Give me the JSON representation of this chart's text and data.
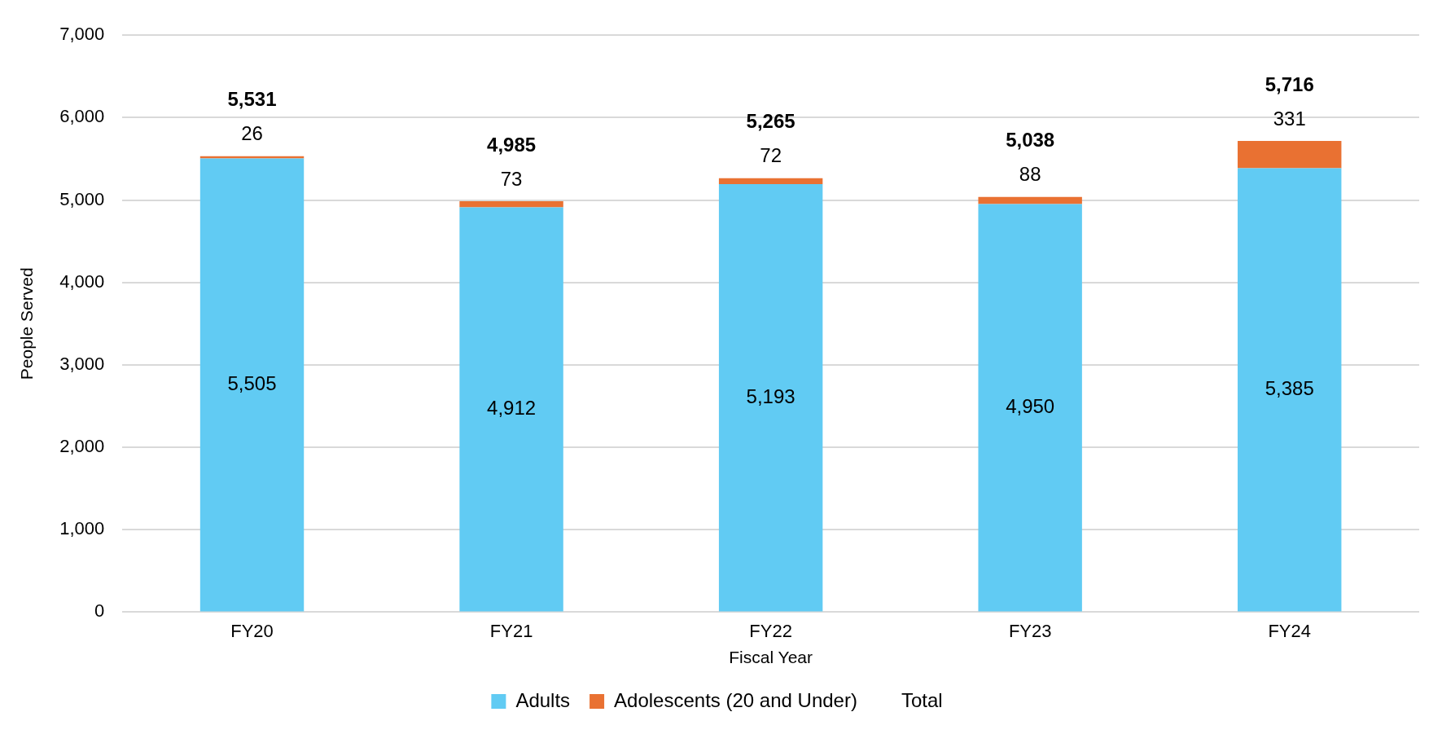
{
  "chart_data": {
    "type": "bar",
    "stacked": true,
    "xlabel": "Fiscal Year",
    "ylabel": "People Served",
    "categories": [
      "FY20",
      "FY21",
      "FY22",
      "FY23",
      "FY24"
    ],
    "series": [
      {
        "name": "Adults",
        "color": "#61cbf3",
        "values": [
          5505,
          4912,
          5193,
          4950,
          5385
        ],
        "value_labels": [
          "5,505",
          "4,912",
          "5,193",
          "4,950",
          "5,385"
        ]
      },
      {
        "name": "Adolescents (20 and Under)",
        "color": "#e97132",
        "values": [
          26,
          73,
          72,
          88,
          331
        ],
        "value_labels": [
          "26",
          "73",
          "72",
          "88",
          "331"
        ]
      }
    ],
    "totals": [
      "5,531",
      "4,985",
      "5,265",
      "5,038",
      "5,716"
    ],
    "annotations": [
      "Total"
    ],
    "ylim": [
      0,
      7000
    ],
    "yticks": [
      {
        "value": 0,
        "label": "0"
      },
      {
        "value": 1000,
        "label": "1,000"
      },
      {
        "value": 2000,
        "label": "2,000"
      },
      {
        "value": 3000,
        "label": "3,000"
      },
      {
        "value": 4000,
        "label": "4,000"
      },
      {
        "value": 5000,
        "label": "5,000"
      },
      {
        "value": 6000,
        "label": "6,000"
      },
      {
        "value": 7000,
        "label": "7,000"
      }
    ],
    "grid": "y",
    "legend": "bottom"
  }
}
